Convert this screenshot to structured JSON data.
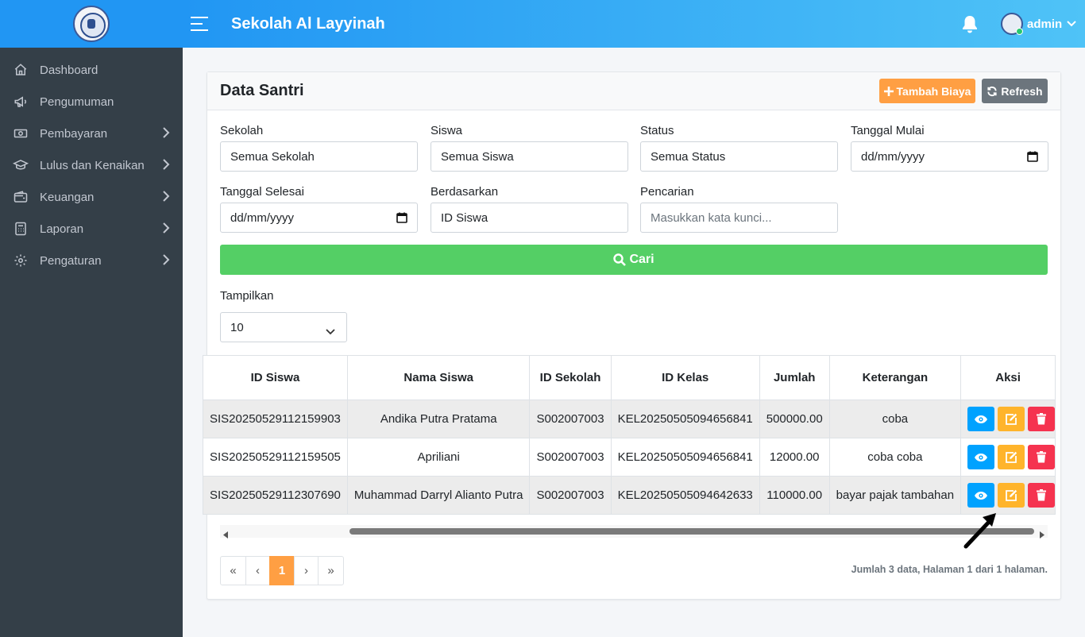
{
  "app": {
    "title": "Sekolah Al Layyinah",
    "user": "admin"
  },
  "sidebar": {
    "items": [
      {
        "label": "Dashboard",
        "icon": "home-icon",
        "has_children": false
      },
      {
        "label": "Pengumuman",
        "icon": "megaphone-icon",
        "has_children": false
      },
      {
        "label": "Pembayaran",
        "icon": "money-icon",
        "has_children": true
      },
      {
        "label": "Lulus dan Kenaikan",
        "icon": "graduation-cap-icon",
        "has_children": true
      },
      {
        "label": "Keuangan",
        "icon": "wallet-icon",
        "has_children": true
      },
      {
        "label": "Laporan",
        "icon": "calculator-icon",
        "has_children": true
      },
      {
        "label": "Pengaturan",
        "icon": "gear-icon",
        "has_children": true
      }
    ]
  },
  "card": {
    "title": "Data Santri",
    "add_button": "Tambah Biaya",
    "refresh_button": "Refresh"
  },
  "filters": {
    "sekolah": {
      "label": "Sekolah",
      "value": "Semua Sekolah"
    },
    "siswa": {
      "label": "Siswa",
      "value": "Semua Siswa"
    },
    "status": {
      "label": "Status",
      "value": "Semua Status"
    },
    "tanggal_mulai": {
      "label": "Tanggal Mulai",
      "value": "dd/mm/yyyy"
    },
    "tanggal_selesai": {
      "label": "Tanggal Selesai",
      "value": "dd/mm/yyyy"
    },
    "berdasarkan": {
      "label": "Berdasarkan",
      "value": "ID Siswa"
    },
    "pencarian": {
      "label": "Pencarian",
      "placeholder": "Masukkan kata kunci..."
    },
    "search_button": "Cari"
  },
  "show": {
    "label": "Tampilkan",
    "value": "10"
  },
  "table": {
    "columns": [
      "ID Siswa",
      "Nama Siswa",
      "ID Sekolah",
      "ID Kelas",
      "Jumlah",
      "Keterangan",
      "Aksi"
    ],
    "rows": [
      {
        "id_siswa": "SIS20250529112159903",
        "nama": "Andika Putra Pratama",
        "id_sekolah": "S002007003",
        "id_kelas": "KEL20250505094656841",
        "jumlah": "500000.00",
        "keterangan": "coba"
      },
      {
        "id_siswa": "SIS20250529112159505",
        "nama": "Apriliani",
        "id_sekolah": "S002007003",
        "id_kelas": "KEL20250505094656841",
        "jumlah": "12000.00",
        "keterangan": "coba coba"
      },
      {
        "id_siswa": "SIS20250529112307690",
        "nama": "Muhammad Darryl Alianto Putra",
        "id_sekolah": "S002007003",
        "id_kelas": "KEL20250505094642633",
        "jumlah": "110000.00",
        "keterangan": "bayar pajak tambahan"
      }
    ]
  },
  "pagination": {
    "first": "«",
    "prev": "‹",
    "current": "1",
    "next": "›",
    "last": "»",
    "summary": "Jumlah 3 data, Halaman 1 dari 1 halaman."
  },
  "colors": {
    "header_start": "#2196f3",
    "header_end": "#4fc3f7",
    "sidebar": "#343f48",
    "add": "#ff9f43",
    "refresh": "#6c757d",
    "search": "#54cf65",
    "view": "#00a2ff",
    "edit": "#ffb42b",
    "delete": "#f5334f"
  }
}
